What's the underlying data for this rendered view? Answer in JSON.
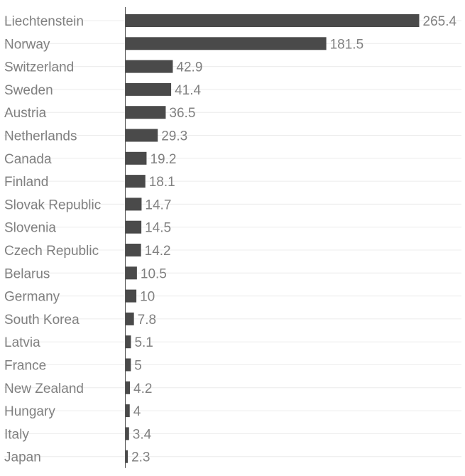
{
  "chart_data": {
    "type": "bar",
    "orientation": "horizontal",
    "title": "",
    "xlabel": "",
    "ylabel": "",
    "xlim": [
      0,
      265.4
    ],
    "grid": false,
    "legend": "none",
    "bar_color": "#4a4a4a",
    "categories": [
      "Liechtenstein",
      "Norway",
      "Switzerland",
      "Sweden",
      "Austria",
      "Netherlands",
      "Canada",
      "Finland",
      "Slovak Republic",
      "Slovenia",
      "Czech Republic",
      "Belarus",
      "Germany",
      "South Korea",
      "Latvia",
      "France",
      "New Zealand",
      "Hungary",
      "Italy",
      "Japan"
    ],
    "values": [
      265.4,
      181.5,
      42.9,
      41.4,
      36.5,
      29.3,
      19.2,
      18.1,
      14.7,
      14.5,
      14.2,
      10.5,
      10,
      7.8,
      5.1,
      5,
      4.2,
      4,
      3.4,
      2.3
    ],
    "value_labels": [
      "265.4",
      "181.5",
      "42.9",
      "41.4",
      "36.5",
      "29.3",
      "19.2",
      "18.1",
      "14.7",
      "14.5",
      "14.2",
      "10.5",
      "10",
      "7.8",
      "5.1",
      "5",
      "4.2",
      "4",
      "3.4",
      "2.3"
    ]
  }
}
